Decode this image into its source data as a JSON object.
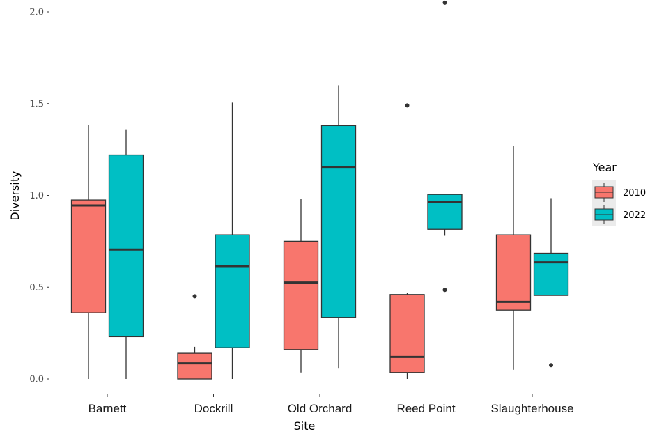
{
  "chart_data": {
    "type": "boxplot",
    "xlabel": "Site",
    "ylabel": "Diversity",
    "ylim": [
      -0.07,
      2.05
    ],
    "yticks": [
      "0.0",
      "0.5",
      "1.0",
      "1.5",
      "2.0"
    ],
    "ytick_values": [
      0.0,
      0.5,
      1.0,
      1.5,
      2.0
    ],
    "categories": [
      "Barnett",
      "Dockrill",
      "Old Orchard",
      "Reed Point",
      "Slaughterhouse"
    ],
    "legend": {
      "title": "Year",
      "position": "right"
    },
    "grid": false,
    "series": [
      {
        "name": "2010",
        "color": "#F8766D",
        "boxes": [
          {
            "min": 0.0,
            "q1": 0.36,
            "median": 0.945,
            "q3": 0.975,
            "max": 1.385,
            "outliers": []
          },
          {
            "min": 0.0,
            "q1": 0.0,
            "median": 0.085,
            "q3": 0.14,
            "max": 0.175,
            "outliers": [
              0.45
            ]
          },
          {
            "min": 0.035,
            "q1": 0.16,
            "median": 0.525,
            "q3": 0.75,
            "max": 0.98,
            "outliers": []
          },
          {
            "min": 0.0,
            "q1": 0.035,
            "median": 0.12,
            "q3": 0.46,
            "max": 0.47,
            "outliers": [
              1.49
            ]
          },
          {
            "min": 0.05,
            "q1": 0.375,
            "median": 0.42,
            "q3": 0.785,
            "max": 1.27,
            "outliers": []
          }
        ]
      },
      {
        "name": "2022",
        "color": "#00BFC4",
        "boxes": [
          {
            "min": 0.0,
            "q1": 0.23,
            "median": 0.705,
            "q3": 1.22,
            "max": 1.36,
            "outliers": []
          },
          {
            "min": 0.0,
            "q1": 0.17,
            "median": 0.615,
            "q3": 0.785,
            "max": 1.505,
            "outliers": []
          },
          {
            "min": 0.06,
            "q1": 0.335,
            "median": 1.155,
            "q3": 1.38,
            "max": 1.6,
            "outliers": []
          },
          {
            "min": 0.78,
            "q1": 0.815,
            "median": 0.965,
            "q3": 1.005,
            "max": 1.005,
            "outliers": [
              2.05,
              0.485
            ]
          },
          {
            "min": 0.455,
            "q1": 0.455,
            "median": 0.635,
            "q3": 0.685,
            "max": 0.985,
            "outliers": [
              0.075
            ]
          }
        ]
      }
    ]
  }
}
